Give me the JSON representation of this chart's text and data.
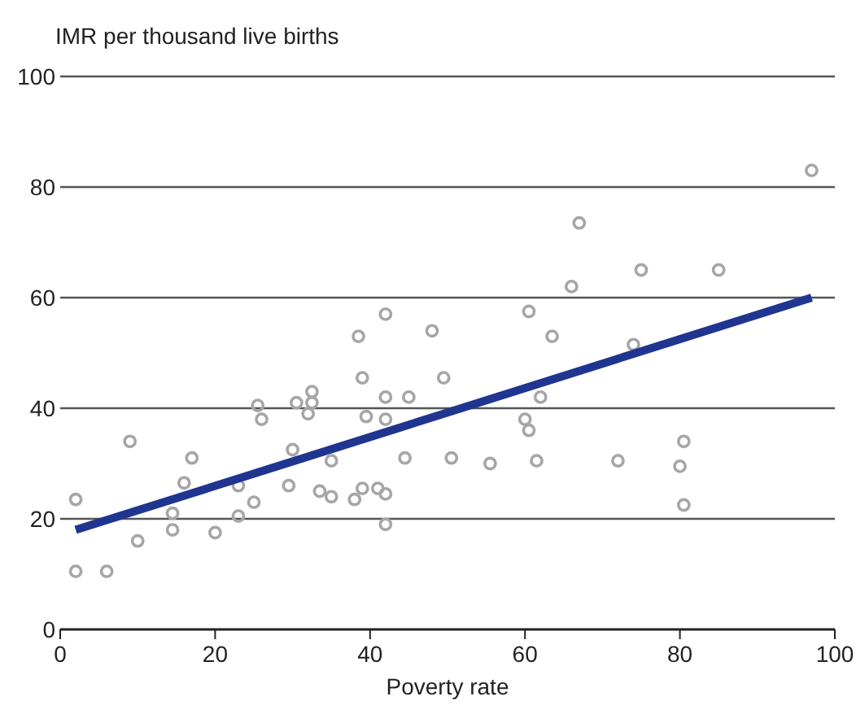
{
  "chart_data": {
    "type": "scatter",
    "xlabel": "Poverty rate",
    "ylabel": "IMR per thousand live births",
    "xlim": [
      0,
      100
    ],
    "ylim": [
      0,
      100
    ],
    "xticks": [
      0,
      20,
      40,
      60,
      80,
      100
    ],
    "yticks": [
      0,
      20,
      40,
      60,
      80,
      100
    ],
    "grid": "y",
    "marker": "circle",
    "series": [
      {
        "color": "#a6a6a8",
        "x": [
          2,
          2,
          6,
          9,
          10,
          14.5,
          14.5,
          16,
          17,
          20,
          23,
          23,
          25,
          25.5,
          26,
          29.5,
          30,
          30.5,
          32,
          32.5,
          32.5,
          33.5,
          35,
          35,
          38,
          39,
          38.5,
          39,
          39.5,
          41,
          42,
          42,
          42,
          42,
          42,
          44.5,
          45,
          48,
          49.5,
          50.5,
          55.5,
          60,
          60.5,
          60.5,
          61.5,
          62,
          63.5,
          66,
          67,
          72,
          74,
          75,
          80,
          80.5,
          80.5,
          85,
          97
        ],
        "values": [
          23.5,
          10.5,
          10.5,
          34,
          16,
          21,
          18,
          26.5,
          31,
          17.5,
          26,
          20.5,
          23,
          40.5,
          38,
          26,
          32.5,
          41,
          39,
          43,
          41,
          25,
          30.5,
          24,
          23.5,
          25.5,
          53,
          45.5,
          38.5,
          25.5,
          57,
          42,
          38,
          24.5,
          19,
          31,
          42,
          54,
          45.5,
          31,
          30,
          38,
          36,
          57.5,
          30.5,
          42,
          53,
          62,
          73.5,
          30.5,
          51.5,
          65,
          29.5,
          22.5,
          34,
          65,
          83
        ]
      },
      {
        "type": "line",
        "color": "#1f3590",
        "marker": "none",
        "x": [
          2,
          97
        ],
        "values": [
          18,
          60
        ]
      }
    ]
  }
}
